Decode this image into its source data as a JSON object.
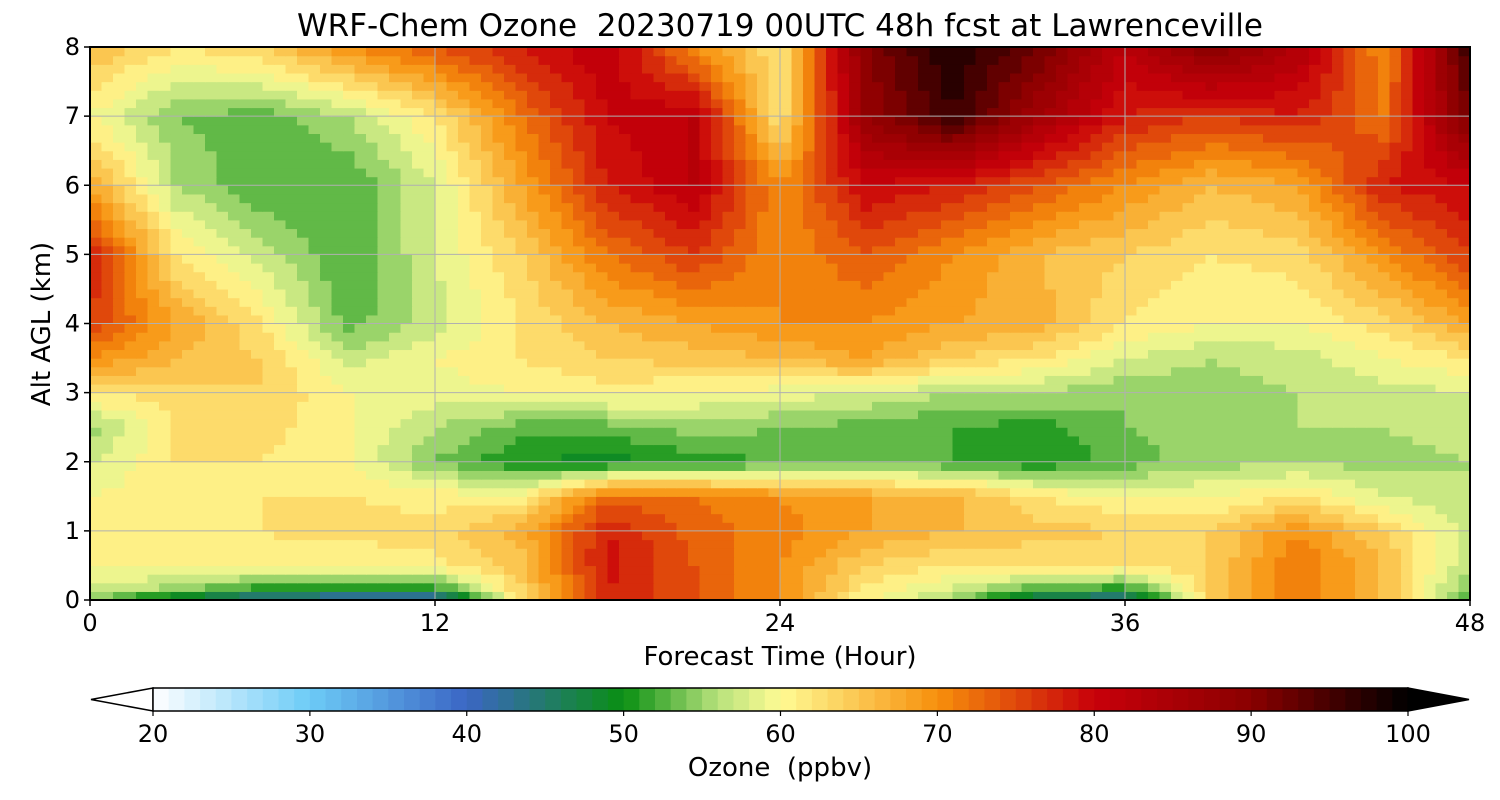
{
  "chart_data": {
    "type": "heatmap",
    "title": "WRF-Chem Ozone  20230719 00UTC 48h fcst at Lawrenceville",
    "xlabel": "Forecast Time (Hour)",
    "ylabel": "Alt AGL (km)",
    "xlim": [
      0,
      48
    ],
    "ylim": [
      0,
      8
    ],
    "x_ticks": [
      0,
      12,
      24,
      36,
      48
    ],
    "y_ticks": [
      0,
      1,
      2,
      3,
      4,
      5,
      6,
      7,
      8
    ],
    "grid": true,
    "colorbar": {
      "label": "Ozone  (ppbv)",
      "min": 20,
      "max": 100,
      "ticks": [
        20,
        30,
        40,
        50,
        60,
        70,
        80,
        90,
        100
      ],
      "extend": "both",
      "stops": [
        {
          "value": 20,
          "color": "#ffffff"
        },
        {
          "value": 30,
          "color": "#6ccbf7"
        },
        {
          "value": 40,
          "color": "#3b66c4"
        },
        {
          "value": 50,
          "color": "#0a8f12"
        },
        {
          "value": 56,
          "color": "#b7e27c"
        },
        {
          "value": 60,
          "color": "#fffb94"
        },
        {
          "value": 70,
          "color": "#f7900c"
        },
        {
          "value": 80,
          "color": "#c8000a"
        },
        {
          "value": 90,
          "color": "#8a0000"
        },
        {
          "value": 100,
          "color": "#000000"
        }
      ]
    },
    "time_hours": [
      0,
      3,
      6,
      9,
      12,
      15,
      18,
      21,
      24,
      27,
      30,
      33,
      36,
      39,
      42,
      45,
      48
    ],
    "altitudes_km": [
      0,
      0.2,
      0.5,
      1,
      1.5,
      2,
      2.5,
      3,
      3.5,
      4,
      5,
      6,
      7,
      8
    ],
    "ozone_ppbv": [
      [
        55,
        46,
        42,
        40,
        39,
        62,
        78,
        74,
        70,
        60,
        55,
        44,
        42,
        64,
        72,
        66,
        52
      ],
      [
        58,
        56,
        52,
        51,
        52,
        64,
        78,
        74,
        70,
        62,
        58,
        54,
        52,
        64,
        72,
        66,
        54
      ],
      [
        60,
        60,
        61,
        60,
        61,
        65,
        79,
        74,
        70,
        64,
        62,
        62,
        62,
        64,
        72,
        66,
        56
      ],
      [
        61,
        61,
        62,
        63,
        63,
        67,
        78,
        73,
        71,
        68,
        66,
        65,
        64,
        64,
        70,
        64,
        57
      ],
      [
        60,
        61,
        62,
        62,
        61,
        61,
        73,
        72,
        70,
        68,
        67,
        62,
        60,
        60,
        62,
        58,
        56
      ],
      [
        58,
        62,
        62,
        60,
        54,
        50,
        49,
        51,
        52,
        53,
        52,
        50,
        53,
        55,
        56,
        55,
        56
      ],
      [
        55,
        62,
        63,
        60,
        56,
        53,
        53,
        55,
        54,
        53,
        52,
        51,
        54,
        55,
        56,
        56,
        57
      ],
      [
        62,
        63,
        64,
        60,
        59,
        60,
        61,
        60,
        59,
        58,
        56,
        56,
        54,
        55,
        56,
        57,
        58
      ],
      [
        70,
        66,
        64,
        57,
        60,
        62,
        64,
        65,
        66,
        68,
        64,
        62,
        58,
        56,
        57,
        60,
        62
      ],
      [
        76,
        68,
        62,
        53,
        57,
        62,
        66,
        68,
        70,
        70,
        68,
        67,
        62,
        60,
        60,
        63,
        68
      ],
      [
        78,
        62,
        57,
        52,
        58,
        64,
        72,
        76,
        70,
        74,
        70,
        66,
        64,
        62,
        63,
        70,
        76
      ],
      [
        68,
        56,
        52,
        52,
        58,
        68,
        78,
        82,
        70,
        80,
        78,
        74,
        70,
        66,
        68,
        78,
        80
      ],
      [
        60,
        54,
        53,
        56,
        62,
        72,
        80,
        82,
        62,
        88,
        96,
        86,
        78,
        76,
        78,
        72,
        92
      ],
      [
        66,
        62,
        64,
        70,
        74,
        78,
        82,
        70,
        62,
        90,
        98,
        92,
        82,
        90,
        84,
        70,
        96
      ]
    ]
  }
}
